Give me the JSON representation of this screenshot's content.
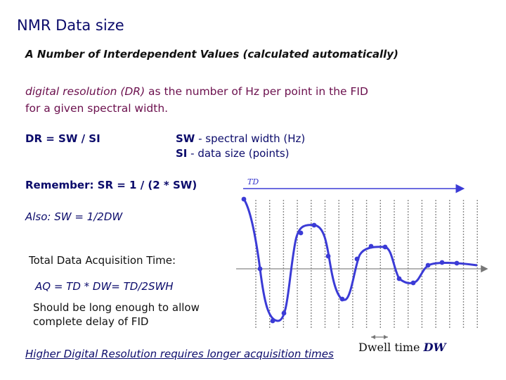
{
  "title": "NMR Data size",
  "subtitle": "A Number of Interdependent Values (calculated automatically)",
  "dr_definition": {
    "term": "digital resolution (DR)",
    "rest": " as the number of Hz per point  in the FID",
    "line2": "for a given spectral width."
  },
  "formula_dr": "DR = SW / SI",
  "sw_def": {
    "key": "SW",
    "text": " - spectral width (Hz)"
  },
  "si_def": {
    "key": "SI",
    "text": " - data size (points)"
  },
  "remember": "Remember: SR = 1 / (2 * SW)",
  "also": "Also: SW = 1/2DW",
  "total_label": "Total Data Acquisition Time:",
  "aq_formula": "AQ = TD * DW= TD/2SWH",
  "should_text": "Should be long enough to allow complete delay of FID",
  "higher_text": "Higher Digital Resolution requires longer acquisition times",
  "dwell": {
    "label": "Dwell time ",
    "symbol": "DW"
  },
  "td_label": "TD",
  "colors": {
    "title": "#0b0b6b",
    "maroon": "#6b0f4d",
    "curve": "#3b3bd6",
    "grid": "#888888"
  }
}
